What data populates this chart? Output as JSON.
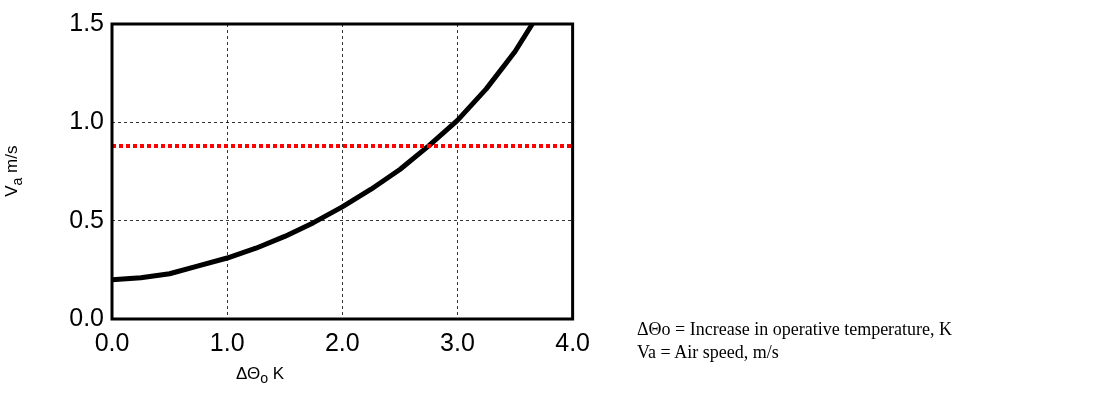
{
  "chart_data": {
    "type": "line",
    "xlabel": "ΔΘ$_{o}$ K",
    "ylabel": "V$_{a}$ m/s",
    "xlim": [
      0,
      4
    ],
    "xticks": [
      {
        "value": 0,
        "label": "0.0"
      },
      {
        "value": 1,
        "label": "1.0"
      },
      {
        "value": 2,
        "label": "2.0"
      },
      {
        "value": 3,
        "label": "3.0"
      },
      {
        "value": 4,
        "label": "4.0"
      }
    ],
    "ylim": [
      0,
      1.5
    ],
    "yticks": [
      {
        "value": 0,
        "label": "0.0"
      },
      {
        "value": 0.5,
        "label": "0.5"
      },
      {
        "value": 1,
        "label": "1.0"
      },
      {
        "value": 1.5,
        "label": "1.5"
      }
    ],
    "grid": true,
    "legend": false,
    "marker": "none",
    "line_style": "solid",
    "series": [
      {
        "color": "#000000",
        "x": [
          0,
          0.25,
          0.5,
          0.75,
          1.0,
          1.25,
          1.5,
          1.75,
          2.0,
          2.25,
          2.5,
          2.75,
          3.0,
          3.25,
          3.5,
          3.65
        ],
        "values": [
          0.2,
          0.21,
          0.23,
          0.27,
          0.31,
          0.36,
          0.42,
          0.49,
          0.57,
          0.66,
          0.76,
          0.88,
          1.01,
          1.17,
          1.36,
          1.5
        ]
      }
    ],
    "ref_lines": [
      {
        "axis": "y",
        "value": 0.88,
        "color": "#ff0000",
        "line_style": "dotted"
      }
    ],
    "annotations": [
      "ΔΘo = Increase in operative temperature, K",
      "Va = Air speed, m/s"
    ]
  }
}
